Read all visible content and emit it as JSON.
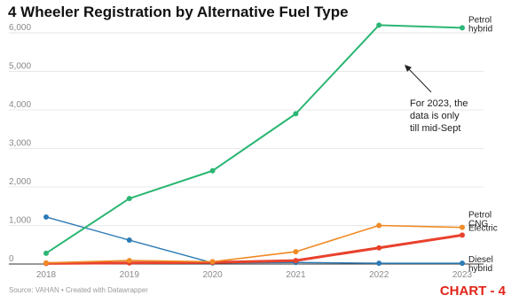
{
  "chart_data": {
    "type": "line",
    "title": "4 Wheeler Registration by Alternative Fuel Type",
    "source": "Source: VAHAN • Created with Datawrapper",
    "stamp": "CHART - 4",
    "annotation": [
      "For 2023, the",
      "data is only",
      "till mid-Sept"
    ],
    "x": [
      "2018",
      "2019",
      "2020",
      "2021",
      "2022",
      "2023"
    ],
    "yticks": [
      0,
      1000,
      2000,
      3000,
      4000,
      5000,
      6000
    ],
    "ytick_labels": [
      "0",
      "1,000",
      "2,000",
      "3,000",
      "4,000",
      "5,000",
      "6,000"
    ],
    "ylim": [
      0,
      6300
    ],
    "grid": true,
    "series": [
      {
        "name": "Petrol hybrid",
        "label_lines": [
          "Petrol",
          "hybrid"
        ],
        "color": "#2bb673",
        "width": 2,
        "values": [
          280,
          1700,
          2420,
          3900,
          6200,
          6130
        ]
      },
      {
        "name": "Petrol CNG",
        "label_lines": [
          "Petrol",
          "CNG"
        ],
        "color": "#f08a24",
        "width": 1.6,
        "values": [
          30,
          90,
          60,
          320,
          1000,
          950
        ]
      },
      {
        "name": "Electric",
        "label_lines": [
          "Electric"
        ],
        "color": "#e8412c",
        "width": 3,
        "values": [
          15,
          30,
          40,
          90,
          420,
          750
        ]
      },
      {
        "name": "Diesel hybrid",
        "label_lines": [
          "Diesel",
          "hybrid"
        ],
        "color": "#2c7bb6",
        "width": 1.4,
        "values": [
          1220,
          620,
          30,
          40,
          20,
          20
        ]
      }
    ]
  }
}
